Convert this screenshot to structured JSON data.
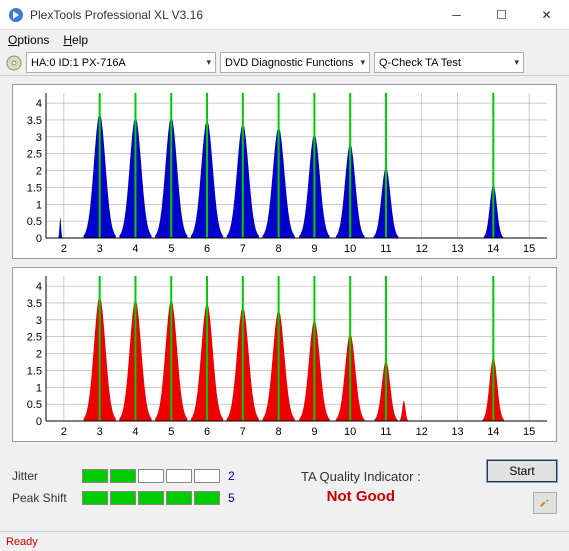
{
  "window": {
    "title": "PlexTools Professional XL V3.16"
  },
  "menu": {
    "options": "Options",
    "help": "Help"
  },
  "toolbar": {
    "drive": "HA:0 ID:1   PX-716A",
    "func": "DVD Diagnostic Functions",
    "test": "Q-Check TA Test"
  },
  "chart1": {
    "type": "histogram-peaks",
    "color": "#0000cc",
    "bg": "#ffffff",
    "grid_color": "#999999",
    "marker_color": "#00cc00",
    "xlim": [
      1.5,
      15.5
    ],
    "ylim": [
      0,
      4.3
    ],
    "xticks": [
      2,
      3,
      4,
      5,
      6,
      7,
      8,
      9,
      10,
      11,
      12,
      13,
      14,
      15
    ],
    "yticks": [
      0,
      0.5,
      1,
      1.5,
      2,
      2.5,
      3,
      3.5,
      4
    ],
    "markers": [
      3,
      4,
      5,
      6,
      7,
      8,
      9,
      10,
      11,
      14
    ],
    "peaks": [
      {
        "x": 1.9,
        "h": 0.6,
        "w": 0.12
      },
      {
        "x": 3,
        "h": 3.7,
        "w": 0.9
      },
      {
        "x": 4,
        "h": 3.6,
        "w": 0.9
      },
      {
        "x": 5,
        "h": 3.6,
        "w": 0.9
      },
      {
        "x": 6,
        "h": 3.5,
        "w": 0.9
      },
      {
        "x": 7,
        "h": 3.4,
        "w": 0.9
      },
      {
        "x": 8,
        "h": 3.3,
        "w": 0.9
      },
      {
        "x": 9,
        "h": 3.1,
        "w": 0.85
      },
      {
        "x": 10,
        "h": 2.8,
        "w": 0.8
      },
      {
        "x": 11,
        "h": 2.1,
        "w": 0.7
      },
      {
        "x": 14,
        "h": 1.6,
        "w": 0.55
      }
    ]
  },
  "chart2": {
    "type": "histogram-peaks",
    "color": "#ee0000",
    "bg": "#ffffff",
    "grid_color": "#999999",
    "marker_color": "#00cc00",
    "xlim": [
      1.5,
      15.5
    ],
    "ylim": [
      0,
      4.3
    ],
    "xticks": [
      2,
      3,
      4,
      5,
      6,
      7,
      8,
      9,
      10,
      11,
      12,
      13,
      14,
      15
    ],
    "yticks": [
      0,
      0.5,
      1,
      1.5,
      2,
      2.5,
      3,
      3.5,
      4
    ],
    "markers": [
      3,
      4,
      5,
      6,
      7,
      8,
      9,
      10,
      11,
      14
    ],
    "peaks": [
      {
        "x": 3,
        "h": 3.7,
        "w": 0.9
      },
      {
        "x": 4,
        "h": 3.6,
        "w": 0.9
      },
      {
        "x": 5,
        "h": 3.6,
        "w": 0.9
      },
      {
        "x": 6,
        "h": 3.5,
        "w": 0.9
      },
      {
        "x": 7,
        "h": 3.4,
        "w": 0.9
      },
      {
        "x": 8,
        "h": 3.3,
        "w": 0.9
      },
      {
        "x": 9,
        "h": 3.0,
        "w": 0.85
      },
      {
        "x": 10,
        "h": 2.6,
        "w": 0.8
      },
      {
        "x": 11,
        "h": 1.8,
        "w": 0.65
      },
      {
        "x": 11.5,
        "h": 0.6,
        "w": 0.25
      },
      {
        "x": 14,
        "h": 1.9,
        "w": 0.6
      }
    ]
  },
  "metrics": {
    "jitter_label": "Jitter",
    "jitter_filled": 2,
    "jitter_total": 5,
    "jitter_value": "2",
    "peakshift_label": "Peak Shift",
    "peakshift_filled": 5,
    "peakshift_total": 5,
    "peakshift_value": "5"
  },
  "quality": {
    "label": "TA Quality Indicator :",
    "value": "Not Good",
    "value_color": "#cc0000"
  },
  "buttons": {
    "start": "Start"
  },
  "status": {
    "text": "Ready",
    "color": "#cc0000"
  }
}
